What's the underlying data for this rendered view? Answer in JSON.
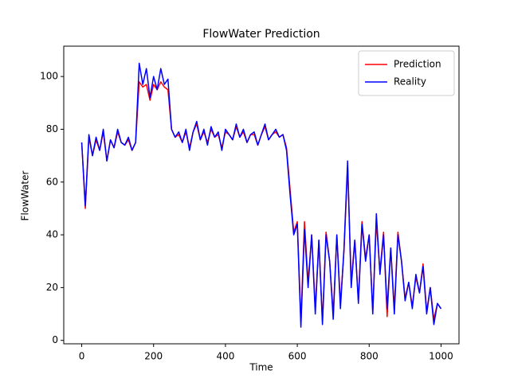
{
  "chart_data": {
    "type": "line",
    "title": "FlowWater Prediction",
    "xlabel": "Time",
    "ylabel": "FlowWater",
    "x": [
      0,
      10,
      20,
      30,
      40,
      50,
      60,
      70,
      80,
      90,
      100,
      110,
      120,
      130,
      140,
      150,
      160,
      170,
      180,
      190,
      200,
      210,
      220,
      230,
      240,
      250,
      260,
      270,
      280,
      290,
      300,
      310,
      320,
      330,
      340,
      350,
      360,
      370,
      380,
      390,
      400,
      410,
      420,
      430,
      440,
      450,
      460,
      470,
      480,
      490,
      500,
      510,
      520,
      530,
      540,
      550,
      560,
      570,
      580,
      590,
      600,
      610,
      620,
      630,
      640,
      650,
      660,
      670,
      680,
      690,
      700,
      710,
      720,
      730,
      740,
      750,
      760,
      770,
      780,
      790,
      800,
      810,
      820,
      830,
      840,
      850,
      860,
      870,
      880,
      890,
      900,
      910,
      920,
      930,
      940,
      950,
      960,
      970,
      980,
      990,
      1000
    ],
    "series": [
      {
        "name": "Prediction",
        "color": "#ff0000",
        "values": [
          75,
          50,
          77,
          70,
          76,
          72,
          79,
          68,
          76,
          73,
          79,
          75,
          74,
          76,
          72,
          75,
          98,
          96,
          97,
          91,
          97,
          95,
          98,
          96,
          95,
          80,
          77,
          78,
          75,
          79,
          73,
          79,
          82,
          76,
          79,
          75,
          80,
          77,
          78,
          73,
          79,
          78,
          76,
          81,
          77,
          79,
          75,
          78,
          78,
          74,
          78,
          81,
          76,
          78,
          79,
          77,
          78,
          73,
          57,
          41,
          45,
          7,
          45,
          22,
          40,
          12,
          38,
          7,
          41,
          30,
          10,
          40,
          14,
          34,
          66,
          22,
          38,
          15,
          45,
          31,
          40,
          11,
          45,
          26,
          41,
          9,
          35,
          12,
          41,
          30,
          16,
          22,
          13,
          24,
          18,
          29,
          11,
          20,
          8,
          14,
          12
        ]
      },
      {
        "name": "Reality",
        "color": "#0000ff",
        "values": [
          75,
          51,
          78,
          70,
          77,
          72,
          80,
          68,
          76,
          73,
          80,
          75,
          74,
          77,
          72,
          75,
          105,
          97,
          103,
          92,
          100,
          95,
          103,
          97,
          99,
          80,
          77,
          79,
          75,
          80,
          72,
          79,
          83,
          76,
          80,
          74,
          81,
          77,
          79,
          72,
          80,
          78,
          76,
          82,
          77,
          80,
          75,
          78,
          79,
          74,
          78,
          82,
          76,
          78,
          80,
          77,
          78,
          72,
          55,
          40,
          44,
          5,
          42,
          20,
          40,
          10,
          38,
          6,
          40,
          30,
          8,
          40,
          12,
          35,
          68,
          20,
          38,
          14,
          44,
          30,
          40,
          10,
          48,
          25,
          40,
          12,
          35,
          10,
          40,
          30,
          15,
          22,
          12,
          25,
          18,
          28,
          10,
          20,
          6,
          14,
          12
        ]
      }
    ],
    "xlim": [
      -50,
      1050
    ],
    "ylim": [
      -1.3,
      111.5
    ],
    "xticks": [
      0,
      200,
      400,
      600,
      800,
      1000
    ],
    "yticks": [
      0,
      20,
      40,
      60,
      80,
      100
    ],
    "legend": "upper right"
  }
}
